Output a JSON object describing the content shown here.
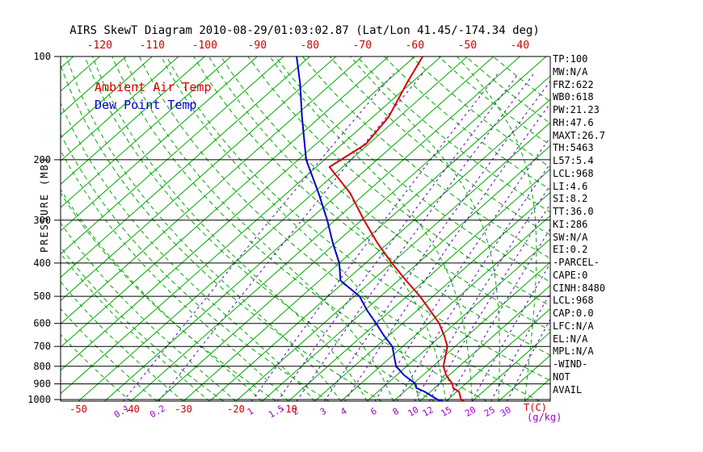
{
  "title": "AIRS SkewT Diagram 2010-08-29/01:03:02.87 (Lat/Lon 41.45/-174.34 deg)",
  "legend": {
    "temp": "Ambient Air Temp",
    "dewpoint": "Dew Point Temp"
  },
  "axes": {
    "pressure_label": "PRESSURE (MB)",
    "pressure_ticks": [
      100,
      200,
      300,
      400,
      500,
      600,
      700,
      800,
      900,
      1000
    ],
    "top_temp_ticks": [
      -120,
      -110,
      -100,
      -90,
      -80,
      -70,
      -60,
      -50,
      -40
    ],
    "bottom_temp_ticks": [
      -50,
      -40,
      -30,
      -20,
      -10
    ],
    "temp_unit": "T(C)",
    "mixing_unit": "(g/kg)"
  },
  "stats_panel": {
    "lines": [
      "TP:100",
      "MW:N/A",
      "FRZ:622",
      "WB0:618",
      "PW:21.23",
      "RH:47.6",
      "MAXT:26.7",
      "TH:5463",
      "L57:5.4",
      "LCL:968",
      "LI:4.6",
      "SI:8.2",
      "TT:36.0",
      "KI:286",
      "SW:N/A",
      "EI:0.2",
      "-PARCEL-",
      "CAPE:0",
      "CINH:8480",
      "LCL:968",
      "CAP:0.0",
      "LFC:N/A",
      "EL:N/A",
      "MPL:N/A",
      "-WIND-",
      "NOT",
      "AVAIL"
    ]
  },
  "colors": {
    "isotherm": "#00aa00",
    "adiabat": "#00aa00",
    "mixing_line": "#5a00c8",
    "mixing_label": "#a000c8",
    "tick_label": "#cc0000",
    "temp_curve": "#d40000",
    "dewpoint_curve": "#0000cd",
    "axis": "#000000"
  },
  "chart_data": {
    "type": "line",
    "title": "AIRS SkewT Diagram 2010-08-29/01:03:02.87 (Lat/Lon 41.45/-174.34 deg)",
    "xlabel": "T(C)",
    "ylabel": "PRESSURE (MB)",
    "y_scale": "log",
    "y_range": [
      100,
      1012
    ],
    "x_range_at_surface": [
      -50,
      40
    ],
    "skew": true,
    "series": [
      {
        "key": "temp_curve",
        "name": "Ambient Air Temp",
        "color": "#d40000",
        "points_pressure_mb_temp_c": [
          [
            1012,
            23.5
          ],
          [
            1000,
            22.5
          ],
          [
            950,
            20.5
          ],
          [
            925,
            18.5
          ],
          [
            900,
            17.5
          ],
          [
            850,
            14.5
          ],
          [
            800,
            12.0
          ],
          [
            700,
            8.5
          ],
          [
            650,
            5.5
          ],
          [
            600,
            2.0
          ],
          [
            550,
            -2.5
          ],
          [
            500,
            -7.5
          ],
          [
            450,
            -13.5
          ],
          [
            400,
            -20.0
          ],
          [
            350,
            -27.0
          ],
          [
            300,
            -34.5
          ],
          [
            250,
            -43.0
          ],
          [
            210,
            -52.5
          ],
          [
            180,
            -50.5
          ],
          [
            150,
            -52.0
          ],
          [
            118,
            -56.0
          ],
          [
            100,
            -58.5
          ]
        ]
      },
      {
        "key": "dewpoint_curve",
        "name": "Dew Point Temp",
        "color": "#0000cd",
        "points_pressure_mb_temp_c": [
          [
            1012,
            19.5
          ],
          [
            1000,
            18.0
          ],
          [
            950,
            14.0
          ],
          [
            925,
            11.5
          ],
          [
            900,
            10.5
          ],
          [
            850,
            6.5
          ],
          [
            800,
            3.0
          ],
          [
            700,
            -2.0
          ],
          [
            650,
            -6.0
          ],
          [
            600,
            -10.0
          ],
          [
            550,
            -14.5
          ],
          [
            500,
            -19.0
          ],
          [
            450,
            -26.0
          ],
          [
            400,
            -30.0
          ],
          [
            350,
            -35.5
          ],
          [
            300,
            -41.5
          ],
          [
            250,
            -49.0
          ],
          [
            200,
            -58.5
          ],
          [
            150,
            -68.5
          ],
          [
            120,
            -76.0
          ],
          [
            100,
            -82.5
          ]
        ]
      }
    ],
    "background": {
      "isotherms_c": {
        "start": -125,
        "end": 40,
        "step": 5
      },
      "dry_adiabats_k": {
        "start": 250,
        "end": 440,
        "step": 10
      },
      "moist_adiabats_start_c": {
        "start": -40,
        "end": 40,
        "step": 5
      },
      "mixing_ratio_g_kg": [
        0.1,
        0.2,
        1,
        1.5,
        2,
        3,
        4,
        6,
        8,
        10,
        12,
        15,
        20,
        25,
        30
      ]
    }
  }
}
